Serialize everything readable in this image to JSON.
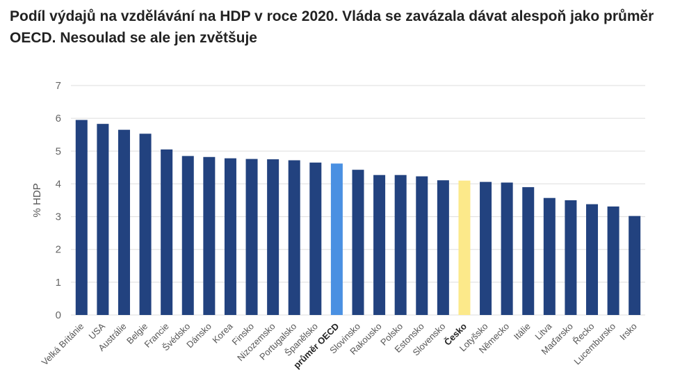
{
  "title": "Podíl výdajů na vzdělávání na HDP v roce 2020. Vláda se zavázala dávat alespoň jako průměr OECD. Nesoulad se ale jen zvětšuje",
  "chart_data": {
    "type": "bar",
    "title": "Podíl výdajů na vzdělávání na HDP v roce 2020. Vláda se zavázala dávat alespoň jako průměr OECD. Nesoulad se ale jen zvětšuje",
    "xlabel": "",
    "ylabel": "% HDP",
    "ylim": [
      0,
      7
    ],
    "yticks": [
      0,
      1,
      2,
      3,
      4,
      5,
      6,
      7
    ],
    "grid": true,
    "legend": "none",
    "categories": [
      "Velká Británie",
      "USA",
      "Austrálie",
      "Belgie",
      "Francie",
      "Švédsko",
      "Dánsko",
      "Korea",
      "Finsko",
      "Nizozemsko",
      "Portugalsko",
      "Španělsko",
      "průměr OECD",
      "Slovinsko",
      "Rakousko",
      "Polsko",
      "Estonsko",
      "Slovensko",
      "Česko",
      "Lotyšsko",
      "Německo",
      "Itálie",
      "Litva",
      "Maďarsko",
      "Řecko",
      "Lucembursko",
      "Irsko"
    ],
    "values": [
      5.95,
      5.83,
      5.65,
      5.53,
      5.05,
      4.85,
      4.82,
      4.78,
      4.76,
      4.75,
      4.72,
      4.65,
      4.62,
      4.43,
      4.27,
      4.27,
      4.23,
      4.11,
      4.1,
      4.06,
      4.04,
      3.9,
      3.57,
      3.5,
      3.38,
      3.31,
      3.02
    ],
    "highlight": {
      "průměr OECD": "#4a90e2",
      "Česko": "#fce98a"
    },
    "bold_categories": [
      "průměr OECD",
      "Česko"
    ],
    "colors": {
      "bar": "#22427f",
      "oecd": "#4a90e2",
      "czech": "#fce98a",
      "grid": "#dddddd"
    }
  }
}
